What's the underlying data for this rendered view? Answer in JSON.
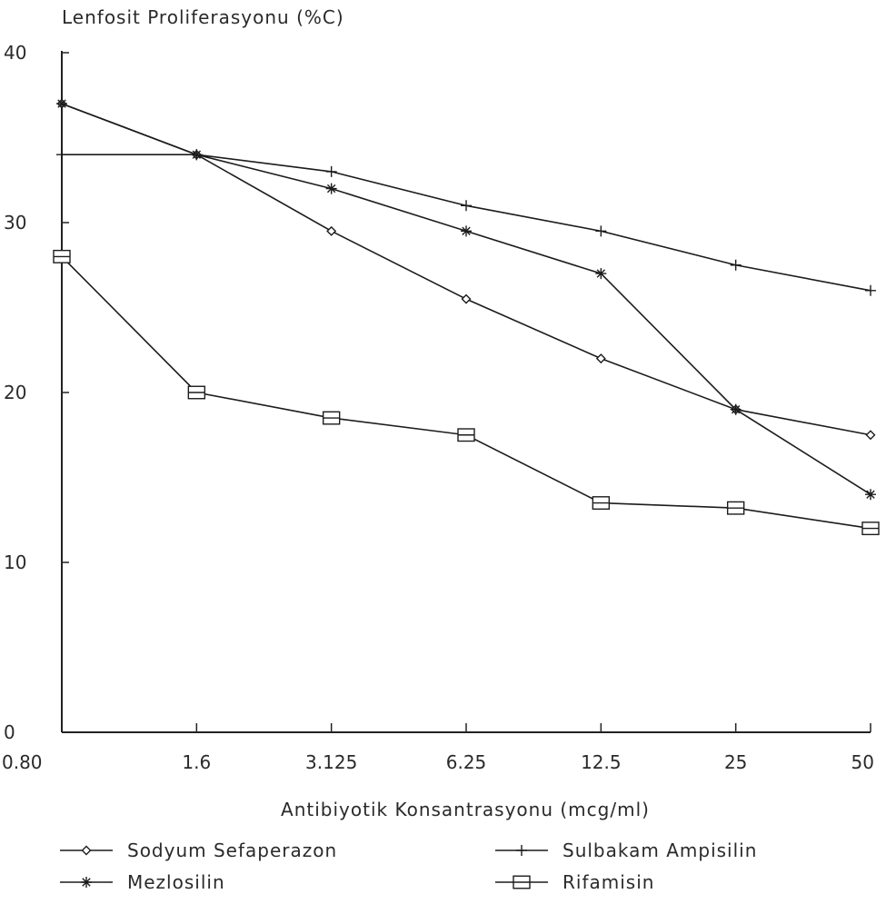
{
  "chart_data": {
    "type": "line",
    "title": "",
    "ylabel": "Lenfosit Proliferasyonu (%C)",
    "xlabel": "Antibiyotik Konsantrasyonu (mcg/ml)",
    "categories": [
      "0.80",
      "1.6",
      "3.125",
      "6.25",
      "12.5",
      "25",
      "50"
    ],
    "x_scale": "log",
    "ylim": [
      0,
      40
    ],
    "yticks": [
      0,
      10,
      20,
      30,
      40
    ],
    "grid": false,
    "legend_position": "bottom",
    "series": [
      {
        "name": "Sodyum Sefaperazon",
        "marker": "diamond",
        "values": [
          37,
          34,
          29.5,
          25.5,
          22,
          19,
          17.5
        ]
      },
      {
        "name": "Sulbakam Ampisilin",
        "marker": "plus",
        "values": [
          34,
          34,
          33,
          31,
          29.5,
          27.5,
          26
        ]
      },
      {
        "name": "Mezlosilin",
        "marker": "star",
        "values": [
          37,
          34,
          32,
          29.5,
          27,
          19,
          14
        ]
      },
      {
        "name": "Rifamisin",
        "marker": "square",
        "values": [
          28,
          20,
          18.5,
          17.5,
          13.5,
          13.2,
          12
        ]
      }
    ]
  }
}
